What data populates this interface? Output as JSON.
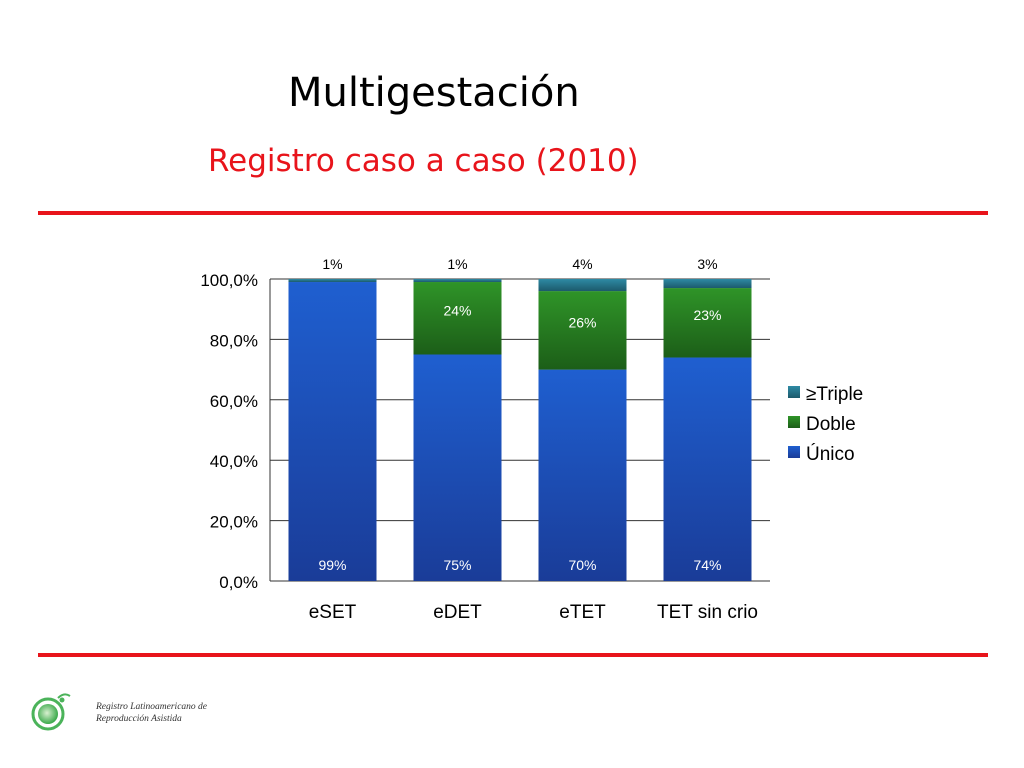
{
  "slide": {
    "title": "Multigestación",
    "subtitle": "Registro caso a caso (2010)"
  },
  "colors": {
    "accent_red": "#e8141b",
    "unico": "#1a4fb8",
    "doble": "#237a1e",
    "triple": "#1f6f86"
  },
  "chart_data": {
    "type": "bar",
    "stacked": true,
    "categories": [
      "eSET",
      "eDET",
      "eTET",
      "TET sin crio"
    ],
    "series": [
      {
        "name": "Único",
        "values": [
          99,
          75,
          70,
          74
        ],
        "labels": [
          "99%",
          "75%",
          "70%",
          "74%"
        ]
      },
      {
        "name": "Doble",
        "values": [
          0,
          24,
          26,
          23
        ],
        "labels": [
          "",
          "24%",
          "26%",
          "23%"
        ]
      },
      {
        "name": "≥Triple",
        "values": [
          1,
          1,
          4,
          3
        ],
        "labels": [
          "1%",
          "1%",
          "4%",
          "3%"
        ]
      }
    ],
    "y_ticks": [
      "0,0%",
      "20,0%",
      "40,0%",
      "60,0%",
      "80,0%",
      "100,0%"
    ],
    "ylim": [
      0,
      100
    ],
    "grid": true,
    "legend": {
      "placement": "right",
      "order": [
        "≥Triple",
        "Doble",
        "Único"
      ]
    }
  },
  "logo": {
    "line1": "Registro Latinoamericano de",
    "line2": "Reproducción Asistida"
  }
}
